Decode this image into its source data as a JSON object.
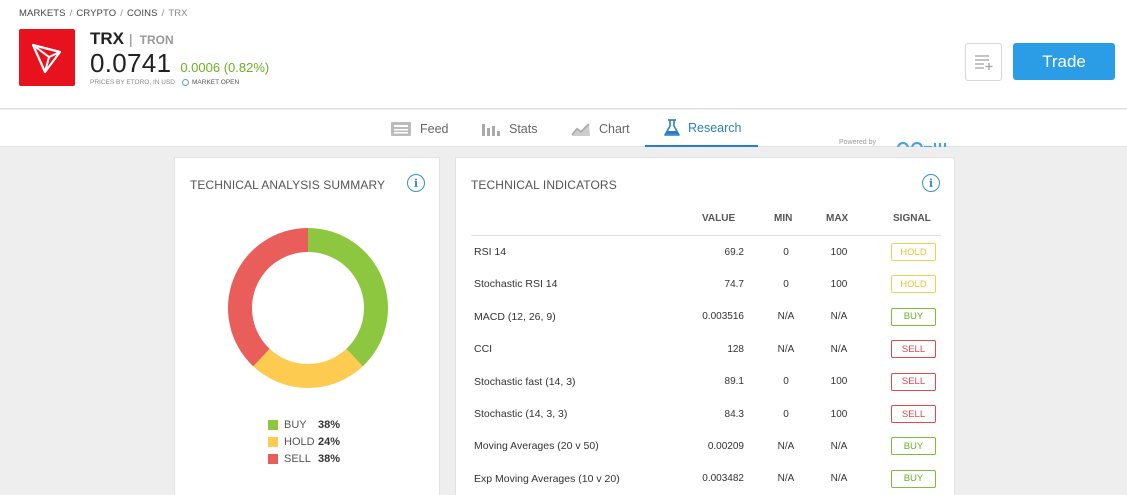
{
  "breadcrumb": [
    "Markets",
    "Crypto",
    "Coins",
    "TRX"
  ],
  "instrument": {
    "ticker": "TRX",
    "name": "TRON",
    "price": "0.0741",
    "change": "0.0006 (0.82%)",
    "prices_note": "Prices by eToro, in USD",
    "market_status": "Market open"
  },
  "actions": {
    "trade_label": "Trade"
  },
  "tabs": [
    {
      "label": "Feed",
      "icon": "feed-icon"
    },
    {
      "label": "Stats",
      "icon": "stats-icon"
    },
    {
      "label": "Chart",
      "icon": "chart-icon"
    },
    {
      "label": "Research",
      "icon": "flask-icon",
      "active": true
    }
  ],
  "powered_by": "Powered by",
  "summary": {
    "title": "Technical Analysis Summary",
    "chart_data": {
      "type": "pie",
      "categories": [
        "BUY",
        "HOLD",
        "SELL"
      ],
      "values": [
        38,
        24,
        38
      ],
      "colors": [
        "#8dc73f",
        "#fccb50",
        "#e95d5b"
      ],
      "legend_position": "bottom"
    },
    "legend": [
      {
        "label": "BUY",
        "pct": "38%",
        "color": "#8dc73f"
      },
      {
        "label": "HOLD",
        "pct": "24%",
        "color": "#fccb50"
      },
      {
        "label": "SELL",
        "pct": "38%",
        "color": "#e95d5b"
      }
    ]
  },
  "indicators": {
    "title": "Technical Indicators",
    "columns": {
      "value": "Value",
      "min": "Min",
      "max": "Max",
      "signal": "Signal"
    },
    "rows": [
      {
        "name": "RSI 14",
        "value": "69.2",
        "min": "0",
        "max": "100",
        "signal": "HOLD"
      },
      {
        "name": "Stochastic RSI 14",
        "value": "74.7",
        "min": "0",
        "max": "100",
        "signal": "HOLD"
      },
      {
        "name": "MACD (12, 26, 9)",
        "value": "0.003516",
        "min": "N/A",
        "max": "N/A",
        "signal": "BUY"
      },
      {
        "name": "CCI",
        "value": "128",
        "min": "N/A",
        "max": "N/A",
        "signal": "SELL"
      },
      {
        "name": "Stochastic fast (14, 3)",
        "value": "89.1",
        "min": "0",
        "max": "100",
        "signal": "SELL"
      },
      {
        "name": "Stochastic (14, 3, 3)",
        "value": "84.3",
        "min": "0",
        "max": "100",
        "signal": "SELL"
      },
      {
        "name": "Moving Averages (20 v 50)",
        "value": "0.00209",
        "min": "N/A",
        "max": "N/A",
        "signal": "BUY"
      },
      {
        "name": "Exp Moving Averages (10 v 20)",
        "value": "0.003482",
        "min": "N/A",
        "max": "N/A",
        "signal": "BUY"
      }
    ]
  }
}
